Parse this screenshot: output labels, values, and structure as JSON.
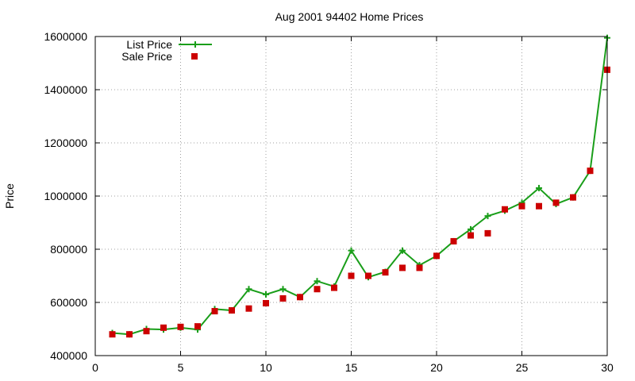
{
  "chart_data": {
    "type": "line",
    "title": "Aug 2001 94402 Home Prices",
    "xlabel": "",
    "ylabel": "Price",
    "xlim": [
      0,
      30
    ],
    "ylim": [
      400000,
      1600000
    ],
    "x_ticks": [
      0,
      5,
      10,
      15,
      20,
      25,
      30
    ],
    "y_ticks": [
      400000,
      600000,
      800000,
      1000000,
      1200000,
      1400000,
      1600000
    ],
    "grid": true,
    "legend_position": "top-left",
    "series": [
      {
        "name": "List Price",
        "style": "line-with-plus-markers",
        "color": "#1a9e1a",
        "x": [
          1,
          2,
          3,
          4,
          5,
          6,
          7,
          8,
          9,
          10,
          11,
          12,
          13,
          14,
          15,
          16,
          17,
          18,
          19,
          20,
          21,
          22,
          23,
          24,
          25,
          26,
          27,
          28,
          29,
          30
        ],
        "values": [
          485000,
          480000,
          500000,
          498000,
          505000,
          498000,
          575000,
          570000,
          650000,
          630000,
          650000,
          620000,
          680000,
          660000,
          795000,
          695000,
          715000,
          795000,
          740000,
          775000,
          830000,
          875000,
          925000,
          945000,
          975000,
          1030000,
          970000,
          995000,
          1095000,
          1595000
        ]
      },
      {
        "name": "Sale Price",
        "style": "square-markers",
        "color": "#cc0000",
        "x": [
          1,
          2,
          3,
          4,
          5,
          6,
          7,
          8,
          9,
          10,
          11,
          12,
          13,
          14,
          15,
          16,
          17,
          18,
          19,
          20,
          21,
          22,
          23,
          24,
          25,
          26,
          27,
          28,
          29,
          30
        ],
        "values": [
          480000,
          480000,
          492000,
          505000,
          508000,
          510000,
          567000,
          570000,
          577000,
          597000,
          615000,
          620000,
          650000,
          655000,
          700000,
          700000,
          713000,
          730000,
          730000,
          775000,
          830000,
          852000,
          860000,
          950000,
          962000,
          962000,
          975000,
          995000,
          1095000,
          1475000
        ]
      }
    ]
  }
}
